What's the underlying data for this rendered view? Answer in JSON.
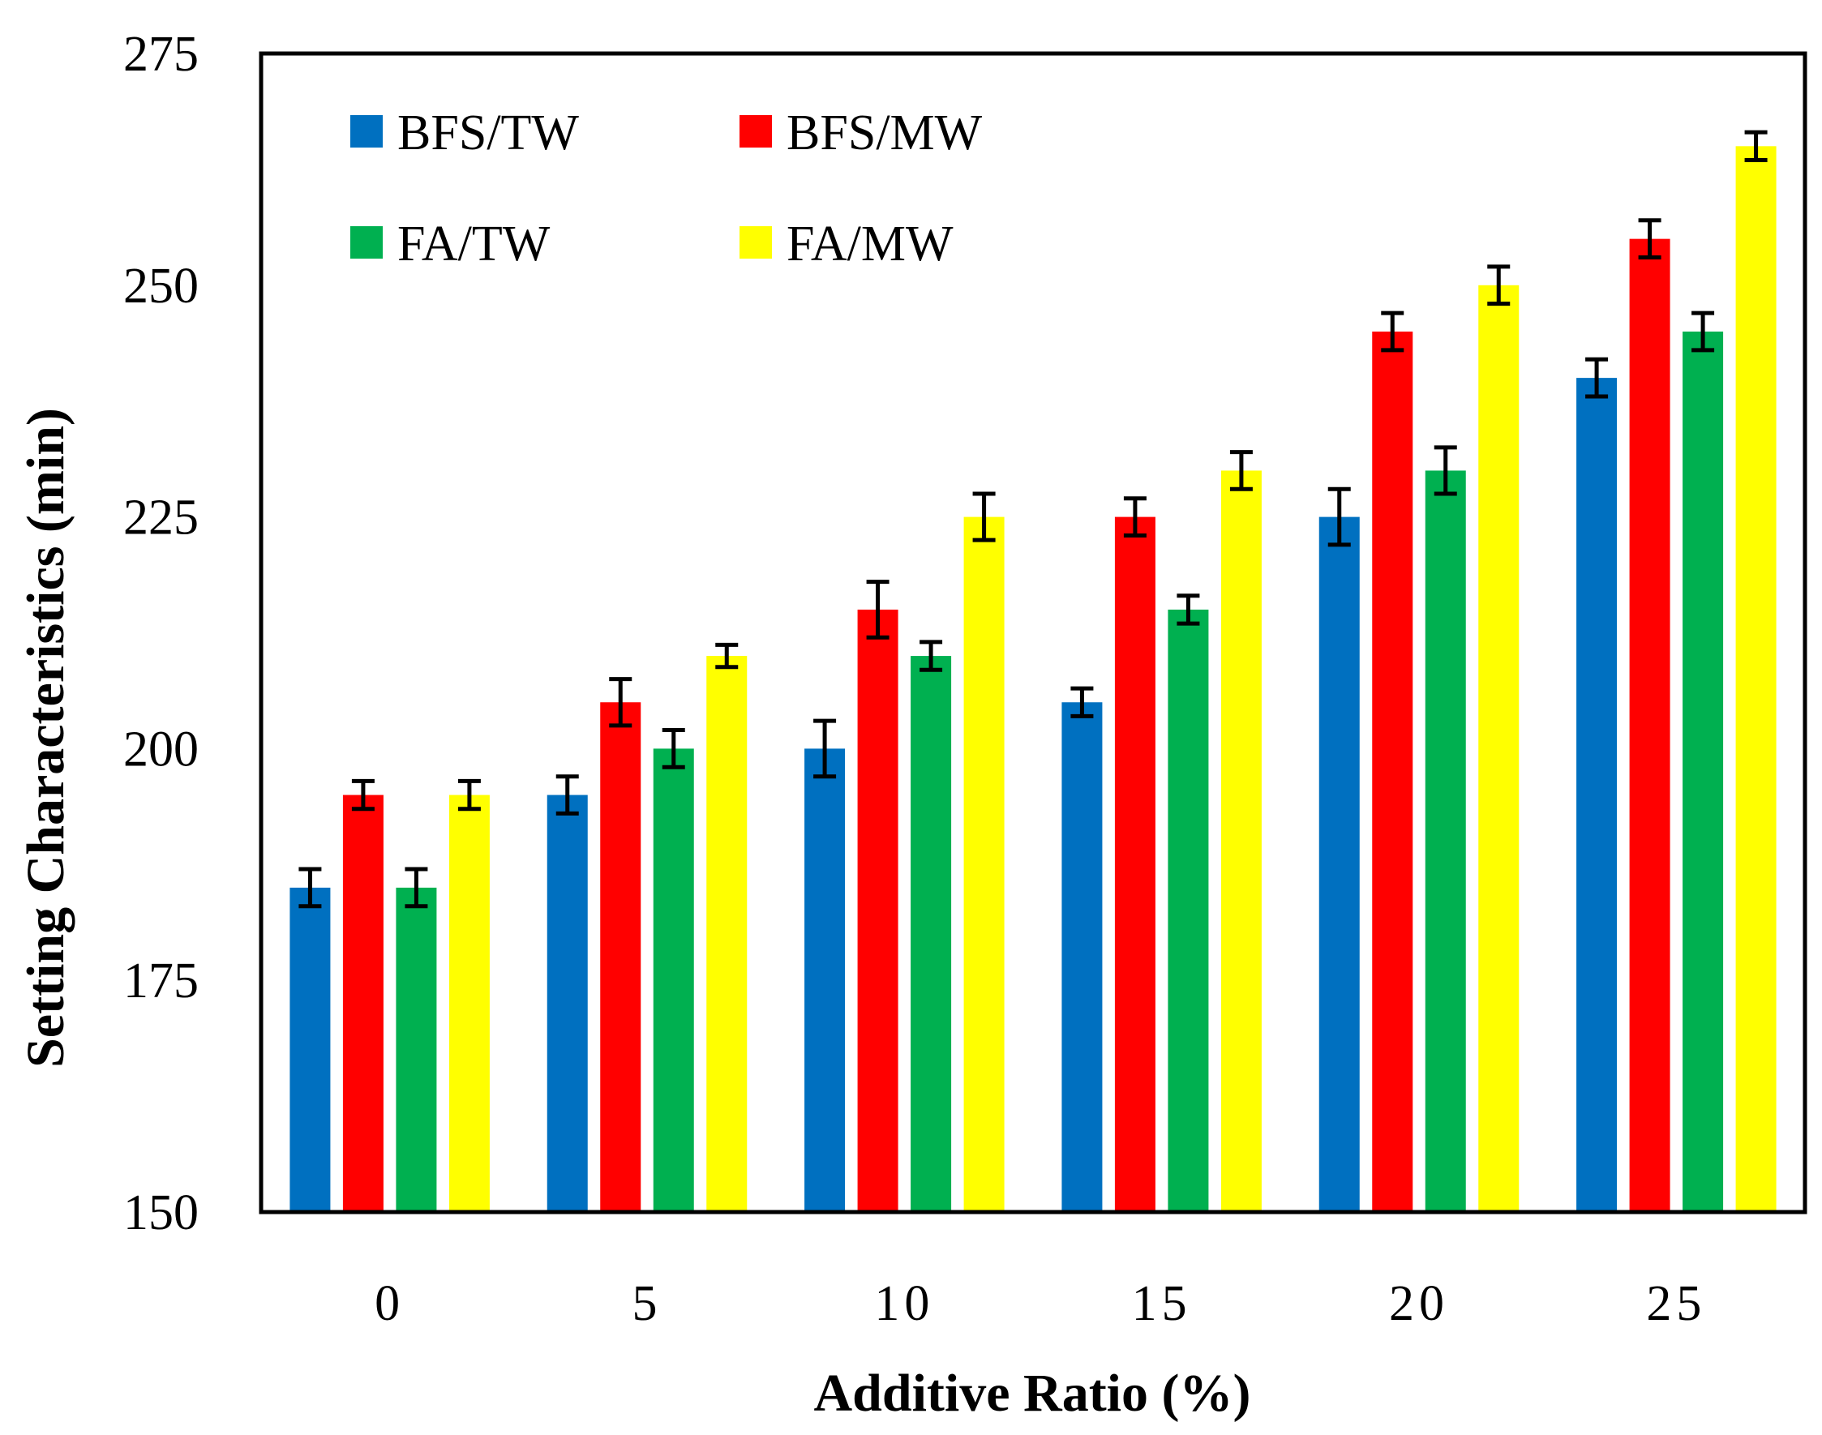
{
  "chart_data": {
    "type": "bar",
    "title": "",
    "xlabel": "Additive Ratio (%)",
    "ylabel": "Setting Characteristics (min)",
    "ylim": [
      150,
      275
    ],
    "yticks": [
      150,
      175,
      200,
      225,
      250,
      275
    ],
    "categories": [
      "0",
      "5",
      "10",
      "15",
      "20",
      "25"
    ],
    "grid": false,
    "legend_position": "top-left",
    "series": [
      {
        "name": "BFS/TW",
        "color": "#0070C0",
        "values": [
          185,
          195,
          200,
          205,
          225,
          240
        ],
        "errors": [
          2,
          2,
          3,
          1.5,
          3,
          2
        ]
      },
      {
        "name": "BFS/MW",
        "color": "#FF0000",
        "values": [
          195,
          205,
          215,
          225,
          245,
          255
        ],
        "errors": [
          1.5,
          2.5,
          3,
          2,
          2,
          2
        ]
      },
      {
        "name": "FA/TW",
        "color": "#00B050",
        "values": [
          185,
          200,
          210,
          215,
          230,
          245
        ],
        "errors": [
          2,
          2,
          1.5,
          1.5,
          2.5,
          2
        ]
      },
      {
        "name": "FA/MW",
        "color": "#FFFF00",
        "values": [
          195,
          210,
          225,
          230,
          250,
          265
        ],
        "errors": [
          1.5,
          1.2,
          2.5,
          2,
          2,
          1.5
        ]
      }
    ]
  }
}
